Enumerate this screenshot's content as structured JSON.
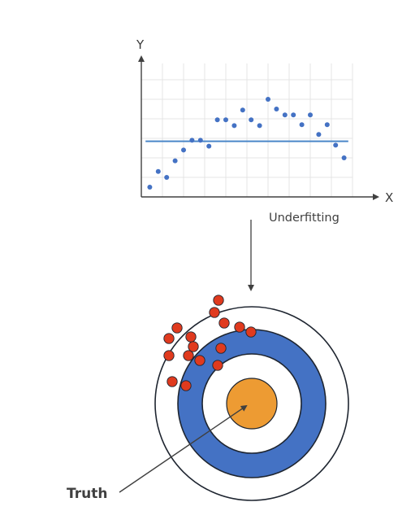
{
  "chart_data": {
    "type": "scatter",
    "title": "",
    "xlabel": "X",
    "ylabel": "Y",
    "grid": true,
    "x": [
      1,
      2,
      3,
      4,
      5,
      6,
      7,
      8,
      9,
      10,
      11,
      12,
      13,
      14,
      15,
      16,
      17,
      18,
      19,
      20,
      21,
      22,
      23,
      24
    ],
    "y": [
      1.0,
      2.6,
      2.0,
      3.7,
      4.8,
      5.8,
      5.8,
      5.2,
      7.9,
      7.9,
      7.3,
      8.9,
      7.9,
      7.3,
      10.0,
      9.0,
      8.4,
      8.4,
      7.4,
      8.4,
      6.4,
      7.4,
      5.3,
      4.0
    ],
    "fit_line_y": 5.7,
    "xlim": [
      0,
      25
    ],
    "ylim": [
      0,
      16
    ],
    "colors": {
      "points": "#4472c4",
      "fit_line": "#4a86c8",
      "grid": "#e4e4e4",
      "axis": "#404040"
    }
  },
  "labels": {
    "y_axis": "Y",
    "x_axis": "X",
    "caption": "Underfitting",
    "truth": "Truth"
  },
  "target": {
    "shot_count": 16,
    "colors": {
      "outer_ring": "#ffffff",
      "middle_ring": "#4472c4",
      "inner_ring": "#ffffff",
      "bullseye": "#ed9b33",
      "shot": "#e03a1e",
      "stroke": "#1e2530"
    }
  }
}
